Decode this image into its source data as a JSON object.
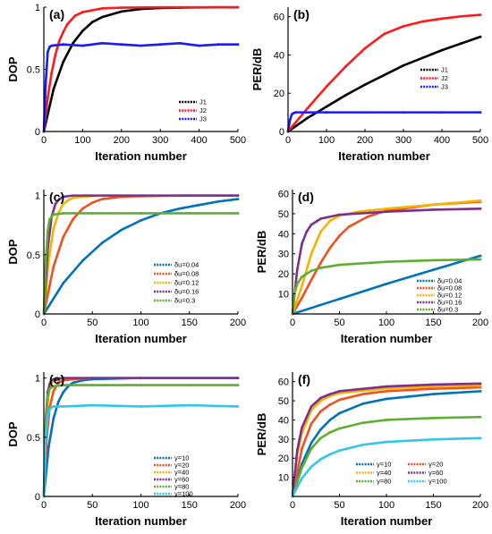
{
  "colors": {
    "J1": "#000000",
    "J2": "#ff1a1a",
    "J3": "#1a1aff",
    "s1": "#0072bd",
    "s2": "#f0501e",
    "s3": "#f5b400",
    "s4": "#7e2f8e",
    "s5": "#5fae32",
    "s6": "#33c5ee"
  },
  "chart_data": [
    {
      "type": "line",
      "panel_label": "(a)",
      "xlabel": "Iteration number",
      "ylabel": "DOP",
      "xlim": [
        0,
        500
      ],
      "ylim": [
        0,
        1
      ],
      "xticks": [
        0,
        100,
        200,
        300,
        400,
        500
      ],
      "yticks": [
        0,
        0.5,
        1
      ],
      "legend_position": "bottom-right",
      "series": [
        {
          "name": "J1",
          "color": "#000000",
          "x": [
            0,
            25,
            50,
            75,
            100,
            125,
            150,
            200,
            250,
            300,
            350,
            400,
            450,
            500
          ],
          "y": [
            0,
            0.34,
            0.56,
            0.71,
            0.81,
            0.88,
            0.92,
            0.965,
            0.985,
            0.993,
            0.996,
            0.998,
            0.999,
            0.999
          ]
        },
        {
          "name": "J2",
          "color": "#ff1a1a",
          "x": [
            0,
            10,
            20,
            30,
            40,
            50,
            60,
            80,
            100,
            150,
            200,
            300,
            400,
            500
          ],
          "y": [
            0,
            0.27,
            0.47,
            0.62,
            0.73,
            0.8,
            0.86,
            0.93,
            0.96,
            0.99,
            0.996,
            0.999,
            0.999,
            0.999
          ]
        },
        {
          "name": "J3",
          "color": "#1a1aff",
          "x": [
            0,
            5,
            10,
            15,
            20,
            50,
            100,
            150,
            200,
            250,
            300,
            350,
            400,
            450,
            500
          ],
          "y": [
            0,
            0.4,
            0.64,
            0.68,
            0.69,
            0.7,
            0.69,
            0.71,
            0.7,
            0.69,
            0.7,
            0.71,
            0.69,
            0.7,
            0.7
          ]
        }
      ]
    },
    {
      "type": "line",
      "panel_label": "(b)",
      "xlabel": "Iteration number",
      "ylabel": "PER/dB",
      "xlim": [
        0,
        500
      ],
      "ylim": [
        0,
        65
      ],
      "xticks": [
        0,
        100,
        200,
        300,
        400,
        500
      ],
      "yticks": [
        0,
        20,
        40,
        60
      ],
      "legend_position": "right",
      "series": [
        {
          "name": "J1",
          "color": "#000000",
          "x": [
            0,
            50,
            100,
            150,
            200,
            250,
            300,
            350,
            400,
            450,
            500
          ],
          "y": [
            0,
            7,
            13,
            19,
            24.5,
            29.5,
            34.5,
            38.5,
            42.5,
            46,
            49.5
          ]
        },
        {
          "name": "J2",
          "color": "#ff1a1a",
          "x": [
            0,
            50,
            100,
            150,
            200,
            250,
            300,
            350,
            400,
            450,
            500
          ],
          "y": [
            0,
            12,
            23.5,
            34,
            43.5,
            51,
            55,
            57.5,
            59,
            60.2,
            61
          ]
        },
        {
          "name": "J3",
          "color": "#1a1aff",
          "x": [
            0,
            5,
            10,
            15,
            20,
            100,
            200,
            300,
            400,
            500
          ],
          "y": [
            0,
            6,
            9,
            9.7,
            10,
            10,
            10,
            10,
            10,
            10
          ]
        }
      ]
    },
    {
      "type": "line",
      "panel_label": "(c)",
      "xlabel": "Iteration number",
      "ylabel": "DOP",
      "xlim": [
        0,
        200
      ],
      "ylim": [
        0,
        1.05
      ],
      "xticks": [
        0,
        50,
        100,
        150,
        200
      ],
      "yticks": [
        0,
        0.5,
        1
      ],
      "legend_position": "bottom-right",
      "series": [
        {
          "name": "δu=0.04",
          "color": "#0072bd",
          "x": [
            0,
            20,
            40,
            60,
            80,
            100,
            120,
            140,
            160,
            180,
            200
          ],
          "y": [
            0,
            0.26,
            0.45,
            0.6,
            0.71,
            0.79,
            0.85,
            0.89,
            0.92,
            0.95,
            0.97
          ]
        },
        {
          "name": "δu=0.08",
          "color": "#f0501e",
          "x": [
            0,
            10,
            20,
            30,
            40,
            50,
            60,
            80,
            100,
            150,
            200
          ],
          "y": [
            0,
            0.4,
            0.65,
            0.8,
            0.89,
            0.94,
            0.97,
            0.99,
            0.995,
            1,
            1
          ]
        },
        {
          "name": "δu=0.12",
          "color": "#f5b400",
          "x": [
            0,
            5,
            10,
            15,
            20,
            25,
            30,
            40,
            60,
            100,
            200
          ],
          "y": [
            0,
            0.45,
            0.72,
            0.85,
            0.93,
            0.96,
            0.98,
            0.99,
            1,
            1,
            1
          ]
        },
        {
          "name": "δu=0.16",
          "color": "#7e2f8e",
          "x": [
            0,
            4,
            8,
            12,
            16,
            20,
            30,
            50,
            100,
            200
          ],
          "y": [
            0,
            0.55,
            0.82,
            0.93,
            0.97,
            0.99,
            1,
            1,
            1,
            1
          ]
        },
        {
          "name": "δu=0.3",
          "color": "#5fae32",
          "x": [
            0,
            2,
            4,
            6,
            10,
            20,
            50,
            100,
            150,
            200
          ],
          "y": [
            0,
            0.45,
            0.7,
            0.8,
            0.84,
            0.85,
            0.85,
            0.85,
            0.85,
            0.85
          ]
        }
      ]
    },
    {
      "type": "line",
      "panel_label": "(d)",
      "xlabel": "Iteration number",
      "ylabel": "PER/dB",
      "xlim": [
        0,
        200
      ],
      "ylim": [
        0,
        62
      ],
      "xticks": [
        0,
        50,
        100,
        150,
        200
      ],
      "yticks": [
        10,
        20,
        30,
        40,
        50,
        60
      ],
      "legend_position": "bottom-right",
      "series": [
        {
          "name": "δu=0.04",
          "color": "#0072bd",
          "x": [
            0,
            50,
            100,
            150,
            200
          ],
          "y": [
            0,
            7.5,
            15,
            22,
            29
          ]
        },
        {
          "name": "δu=0.08",
          "color": "#f0501e",
          "x": [
            0,
            10,
            20,
            30,
            40,
            50,
            60,
            80,
            100,
            150,
            200
          ],
          "y": [
            0,
            8,
            17,
            25.5,
            33,
            39,
            43.5,
            48.5,
            51.5,
            54.5,
            56
          ]
        },
        {
          "name": "δu=0.12",
          "color": "#f5b400",
          "x": [
            0,
            10,
            20,
            30,
            40,
            50,
            70,
            100,
            150,
            200
          ],
          "y": [
            0,
            14,
            30,
            41,
            46.5,
            49,
            51,
            52.5,
            54.5,
            56.5
          ]
        },
        {
          "name": "δu=0.16",
          "color": "#7e2f8e",
          "x": [
            0,
            5,
            10,
            15,
            20,
            30,
            50,
            100,
            150,
            200
          ],
          "y": [
            0,
            22,
            35,
            41,
            44.5,
            47.5,
            49.5,
            51,
            52,
            52.5
          ]
        },
        {
          "name": "δu=0.3",
          "color": "#5fae32",
          "x": [
            0,
            2,
            5,
            10,
            20,
            30,
            50,
            100,
            150,
            200
          ],
          "y": [
            0,
            10,
            15,
            18.5,
            21.5,
            23,
            24.5,
            26,
            26.8,
            27.2
          ]
        }
      ]
    },
    {
      "type": "line",
      "panel_label": "(e)",
      "xlabel": "Iteration number",
      "ylabel": "DOP",
      "xlim": [
        0,
        200
      ],
      "ylim": [
        0,
        1.05
      ],
      "xticks": [
        0,
        50,
        100,
        150,
        200
      ],
      "yticks": [
        0,
        0.5,
        1
      ],
      "legend_position": "bottom-right",
      "series": [
        {
          "name": "γ=10",
          "color": "#0072bd",
          "x": [
            0,
            5,
            10,
            15,
            20,
            25,
            30,
            40,
            50,
            100,
            200
          ],
          "y": [
            0,
            0.42,
            0.66,
            0.8,
            0.88,
            0.93,
            0.96,
            0.98,
            0.99,
            1,
            1
          ]
        },
        {
          "name": "γ=20",
          "color": "#f0501e",
          "x": [
            0,
            3,
            6,
            10,
            15,
            20,
            30,
            50,
            100,
            200
          ],
          "y": [
            0,
            0.5,
            0.75,
            0.89,
            0.96,
            0.98,
            0.99,
            1,
            1,
            1
          ]
        },
        {
          "name": "γ=40",
          "color": "#f5b400",
          "x": [
            0,
            2,
            4,
            6,
            8,
            12,
            20,
            50,
            100,
            200
          ],
          "y": [
            0,
            0.55,
            0.8,
            0.91,
            0.96,
            0.99,
            1,
            1,
            1,
            1
          ]
        },
        {
          "name": "γ=60",
          "color": "#7e2f8e",
          "x": [
            0,
            2,
            4,
            6,
            8,
            10,
            20,
            50,
            100,
            200
          ],
          "y": [
            0,
            0.65,
            0.88,
            0.95,
            0.98,
            0.99,
            1,
            1,
            1,
            1
          ]
        },
        {
          "name": "γ=80",
          "color": "#5fae32",
          "x": [
            0,
            2,
            4,
            6,
            10,
            20,
            50,
            100,
            150,
            200
          ],
          "y": [
            0,
            0.6,
            0.85,
            0.91,
            0.93,
            0.94,
            0.94,
            0.94,
            0.94,
            0.94
          ]
        },
        {
          "name": "γ=100",
          "color": "#33c5ee",
          "x": [
            0,
            2,
            4,
            6,
            10,
            20,
            50,
            100,
            150,
            200
          ],
          "y": [
            0,
            0.5,
            0.68,
            0.74,
            0.76,
            0.76,
            0.77,
            0.76,
            0.77,
            0.76
          ]
        }
      ]
    },
    {
      "type": "line",
      "panel_label": "(f)",
      "xlabel": "Iteration number",
      "ylabel": "PER/dB",
      "xlim": [
        0,
        200
      ],
      "ylim": [
        0,
        65
      ],
      "xticks": [
        0,
        50,
        100,
        150,
        200
      ],
      "yticks": [
        10,
        20,
        30,
        40,
        50,
        60
      ],
      "legend_position": "bottom-right",
      "series": [
        {
          "name": "γ=10",
          "color": "#0072bd",
          "x": [
            0,
            10,
            20,
            30,
            40,
            50,
            75,
            100,
            150,
            200
          ],
          "y": [
            0,
            17,
            28,
            35,
            40,
            43.5,
            48.5,
            51,
            53.5,
            55
          ]
        },
        {
          "name": "γ=20",
          "color": "#f0501e",
          "x": [
            0,
            10,
            20,
            30,
            40,
            50,
            75,
            100,
            150,
            200
          ],
          "y": [
            0,
            25,
            38,
            44.5,
            48,
            50.5,
            53.5,
            55,
            56.3,
            57
          ]
        },
        {
          "name": "γ=40",
          "color": "#f5b400",
          "x": [
            0,
            5,
            10,
            20,
            30,
            40,
            50,
            100,
            150,
            200
          ],
          "y": [
            0,
            22,
            33,
            45,
            50,
            52.5,
            54,
            56.5,
            57.5,
            58
          ]
        },
        {
          "name": "γ=60",
          "color": "#7e2f8e",
          "x": [
            0,
            5,
            10,
            20,
            30,
            40,
            50,
            100,
            150,
            200
          ],
          "y": [
            0,
            24,
            36,
            47,
            51.5,
            53.5,
            55,
            57.5,
            58.5,
            59
          ]
        },
        {
          "name": "γ=80",
          "color": "#5fae32",
          "x": [
            0,
            10,
            20,
            30,
            40,
            50,
            75,
            100,
            150,
            200
          ],
          "y": [
            0,
            15,
            25,
            30.5,
            33.5,
            35.5,
            38.5,
            40,
            41,
            41.5
          ]
        },
        {
          "name": "γ=100",
          "color": "#33c5ee",
          "x": [
            0,
            10,
            20,
            30,
            40,
            50,
            75,
            100,
            150,
            200
          ],
          "y": [
            0,
            9.5,
            15.5,
            19.5,
            22,
            24,
            27,
            28.5,
            29.8,
            30.5
          ]
        }
      ]
    }
  ]
}
